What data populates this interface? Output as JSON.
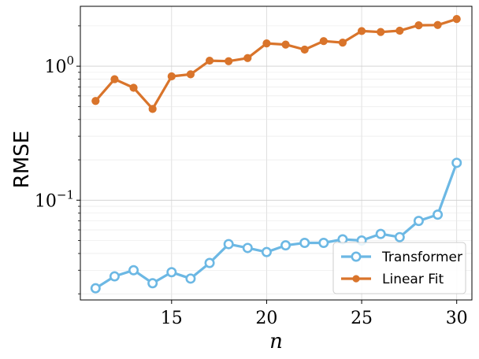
{
  "chart_data": {
    "type": "line",
    "xlabel": "n",
    "ylabel": "RMSE",
    "yscale": "log",
    "xlim": [
      10.2,
      30.8
    ],
    "ylim": [
      0.018,
      2.8
    ],
    "xticks": [
      15,
      20,
      25,
      30
    ],
    "xtick_labels": [
      "15",
      "20",
      "25",
      "30"
    ],
    "yticks": [
      0.1,
      1
    ],
    "ytick_labels": [
      {
        "base": "10",
        "exp": "−1"
      },
      {
        "base": "10",
        "exp": "0"
      }
    ],
    "grid": true,
    "legend_position": "lower-right",
    "x": [
      11,
      12,
      13,
      14,
      15,
      16,
      17,
      18,
      19,
      20,
      21,
      22,
      23,
      24,
      25,
      26,
      27,
      28,
      29,
      30
    ],
    "series": [
      {
        "name": "Transformer",
        "color": "#6cb8e4",
        "marker": "hollow-circle",
        "values": [
          0.022,
          0.027,
          0.03,
          0.024,
          0.029,
          0.026,
          0.034,
          0.047,
          0.044,
          0.041,
          0.046,
          0.048,
          0.048,
          0.051,
          0.05,
          0.056,
          0.053,
          0.07,
          0.078,
          0.19
        ]
      },
      {
        "name": "Linear Fit",
        "color": "#d9742b",
        "marker": "filled-circle",
        "values": [
          0.55,
          0.8,
          0.69,
          0.48,
          0.84,
          0.87,
          1.1,
          1.09,
          1.15,
          1.48,
          1.45,
          1.33,
          1.54,
          1.5,
          1.83,
          1.8,
          1.84,
          2.02,
          2.03,
          2.25
        ]
      }
    ]
  }
}
